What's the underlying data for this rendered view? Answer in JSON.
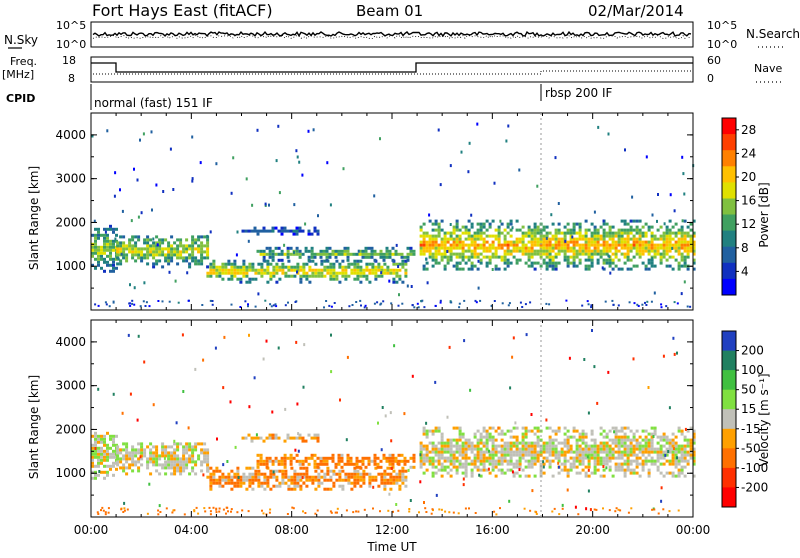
{
  "header": {
    "station": "Fort Hays East (fitACF)",
    "beam": "Beam 01",
    "date": "02/Mar/2014"
  },
  "top_panels": {
    "nsky_label": "N.Sky",
    "nsky_ticks": [
      "10^5",
      "10^0"
    ],
    "nsearch_label": "N.Search",
    "nsearch_ticks": [
      "10^5",
      "10^0"
    ],
    "freq_label": "Freq.",
    "freq_unit": "[MHz]",
    "freq_ticks": [
      "18",
      "8"
    ],
    "nave_label": "Nave",
    "nave_ticks": [
      "60",
      "0"
    ],
    "cpid_label": "CPID",
    "cpid_segments": [
      "normal (fast) 151 IF",
      "rbsp 200 IF"
    ]
  },
  "colorbars": {
    "power": {
      "label": "Power [dB]",
      "ticks": [
        "28",
        "24",
        "20",
        "16",
        "12",
        "8",
        "4"
      ],
      "colors": [
        "#ff0000",
        "#ff4000",
        "#ff8000",
        "#ffc000",
        "#e0e000",
        "#80c040",
        "#40a060",
        "#208080",
        "#2060a0",
        "#1030c0",
        "#0000ff"
      ]
    },
    "velocity": {
      "label": "Velocity [m s⁻¹]",
      "ticks": [
        "200",
        "100",
        "50",
        "15",
        "-15",
        "-50",
        "-100",
        "-200"
      ],
      "colors": [
        "#2040c0",
        "#208060",
        "#40c040",
        "#80e040",
        "#c0c0b8",
        "#ffa000",
        "#ff7000",
        "#ff3000",
        "#ff0000"
      ]
    }
  },
  "chart_data": [
    {
      "type": "heatmap",
      "title": "",
      "xlabel": "Time UT",
      "ylabel": "Slant Range [km]",
      "x_ticks": [
        "00:00",
        "04:00",
        "08:00",
        "12:00",
        "16:00",
        "20:00",
        "00:00"
      ],
      "xlim_hours": [
        0,
        24
      ],
      "y_ticks": [
        1000,
        2000,
        3000,
        4000
      ],
      "ylim": [
        0,
        4500
      ],
      "parameter": "Power [dB]",
      "color_range": [
        0,
        30
      ],
      "echo_bands": [
        {
          "t_start": 0.0,
          "t_end": 1.0,
          "r_low": 850,
          "r_high": 1900,
          "power": 16
        },
        {
          "t_start": 1.0,
          "t_end": 4.6,
          "r_low": 950,
          "r_high": 1700,
          "power": 18
        },
        {
          "t_start": 4.6,
          "t_end": 12.6,
          "r_low": 600,
          "r_high": 1100,
          "power": 20
        },
        {
          "t_start": 6.6,
          "t_end": 12.9,
          "r_low": 1100,
          "r_high": 1400,
          "power": 14
        },
        {
          "t_start": 6.0,
          "t_end": 9.0,
          "r_low": 1700,
          "r_high": 1850,
          "power": 6
        },
        {
          "t_start": 13.1,
          "t_end": 24.0,
          "r_low": 900,
          "r_high": 2000,
          "power": 22
        }
      ]
    },
    {
      "type": "heatmap",
      "title": "",
      "xlabel": "Time UT",
      "ylabel": "Slant Range [km]",
      "x_ticks": [
        "00:00",
        "04:00",
        "08:00",
        "12:00",
        "16:00",
        "20:00",
        "00:00"
      ],
      "xlim_hours": [
        0,
        24
      ],
      "y_ticks": [
        1000,
        2000,
        3000,
        4000
      ],
      "ylim": [
        0,
        4500
      ],
      "parameter": "Velocity [m s-1]",
      "color_range": [
        -250,
        250
      ],
      "echo_bands": [
        {
          "t_start": 0.0,
          "t_end": 1.0,
          "r_low": 850,
          "r_high": 1900,
          "velocity": 0
        },
        {
          "t_start": 1.0,
          "t_end": 4.6,
          "r_low": 950,
          "r_high": 1700,
          "velocity": 0
        },
        {
          "t_start": 4.6,
          "t_end": 12.6,
          "r_low": 600,
          "r_high": 1100,
          "velocity": -30
        },
        {
          "t_start": 6.6,
          "t_end": 12.9,
          "r_low": 1100,
          "r_high": 1400,
          "velocity": -40
        },
        {
          "t_start": 6.0,
          "t_end": 9.0,
          "r_low": 1700,
          "r_high": 1850,
          "velocity": -20
        },
        {
          "t_start": 13.1,
          "t_end": 24.0,
          "r_low": 900,
          "r_high": 2000,
          "velocity": 0
        }
      ]
    }
  ]
}
